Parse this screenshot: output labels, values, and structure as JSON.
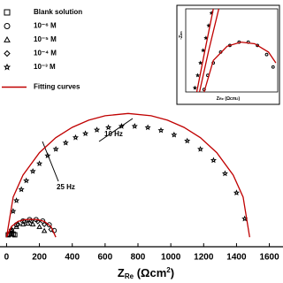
{
  "chart_data": [
    {
      "type": "scatter",
      "x_label": {
        "main": "Z",
        "sub": "Re",
        "unit": " (Ωcm",
        "sup": "2",
        "end": ")"
      },
      "xlim": [
        -40,
        1640
      ],
      "ylim": [
        -60,
        1490
      ],
      "xticks": [
        0,
        200,
        400,
        600,
        800,
        1000,
        1200,
        1400,
        1600
      ],
      "annotations": [
        "10 Hz",
        "25 Hz"
      ],
      "legend": "upper left",
      "series": [
        {
          "name": "Blank solution",
          "marker": "square",
          "color": "#000000",
          "x": [
            10,
            20,
            30,
            40,
            50
          ],
          "values": [
            15,
            20,
            22,
            20,
            15
          ]
        },
        {
          "name": "10⁻⁶ M",
          "marker": "circle",
          "color": "#000000",
          "x": [
            30,
            60,
            100,
            140,
            180,
            220,
            260,
            290
          ],
          "values": [
            42,
            78,
            102,
            111,
            111,
            102,
            78,
            42
          ]
        },
        {
          "name": "10⁻⁵ M",
          "marker": "triangle",
          "color": "#000000",
          "x": [
            30,
            60,
            100,
            130,
            160,
            200,
            230
          ],
          "values": [
            40,
            65,
            82,
            86,
            82,
            65,
            40
          ]
        },
        {
          "name": "10⁻⁴ M",
          "marker": "diamond",
          "color": "#000000",
          "x": [
            30,
            70,
            110,
            150,
            190,
            230,
            270
          ],
          "values": [
            48,
            80,
            98,
            102,
            98,
            80,
            48
          ]
        },
        {
          "name": "10⁻³ M",
          "marker": "star",
          "color": "#000000",
          "x": [
            40,
            60,
            90,
            120,
            160,
            200,
            250,
            300,
            360,
            420,
            480,
            550,
            620,
            700,
            780,
            860,
            940,
            1020,
            1100,
            1180,
            1260,
            1330,
            1400,
            1450
          ],
          "values": [
            163,
            230,
            300,
            355,
            414,
            462,
            512,
            553,
            593,
            626,
            651,
            674,
            689,
            697,
            697,
            689,
            671,
            643,
            605,
            553,
            483,
            400,
            279,
            116
          ]
        },
        {
          "name": "Fitting curves",
          "marker": "line",
          "color": "#c00000",
          "x": [
            0,
            40,
            100,
            200,
            300,
            400,
            500,
            600,
            740,
            880,
            980,
            1080,
            1180,
            1280,
            1380,
            1440,
            1480,
            1480,
            0,
            30,
            70,
            110,
            150,
            190,
            230,
            270,
            300
          ],
          "values": [
            0,
            252,
            390,
            531,
            625,
            690,
            735,
            763,
            777,
            763,
            735,
            690,
            625,
            531,
            390,
            252,
            0,
            null,
            0,
            67,
            99,
            110,
            112,
            110,
            99,
            67,
            0
          ]
        }
      ]
    },
    {
      "type": "scatter",
      "x_label": {
        "main": "Z",
        "sub": "Re",
        "unit": " (Ωcm",
        "sup": "2",
        "end": ")"
      },
      "y_label": "-Z",
      "y_label_sub": "Im",
      "xlim": [
        0,
        100
      ],
      "ylim": [
        0,
        100
      ],
      "series": [
        {
          "marker": "star",
          "color": "#000000",
          "x": [
            10,
            13,
            16,
            19,
            22,
            25,
            28
          ],
          "values": [
            5,
            20,
            35,
            50,
            65,
            80,
            95
          ]
        },
        {
          "marker": "circle",
          "color": "#000000",
          "x": [
            20,
            24,
            30,
            38,
            48,
            58,
            68,
            78,
            88,
            95
          ],
          "values": [
            3,
            20,
            35,
            48,
            56,
            60,
            60,
            56,
            45,
            30
          ]
        },
        {
          "marker": "line",
          "color": "#c00000",
          "x": [
            12,
            20,
            30,
            30,
            15,
            25,
            36
          ],
          "values": [
            0,
            45,
            100,
            null,
            0,
            50,
            100
          ]
        },
        {
          "marker": "line",
          "color": "#c00000",
          "x": [
            20,
            30,
            45,
            60,
            75,
            90,
            98
          ],
          "values": [
            0,
            38,
            55,
            60,
            58,
            48,
            35
          ]
        }
      ]
    }
  ]
}
